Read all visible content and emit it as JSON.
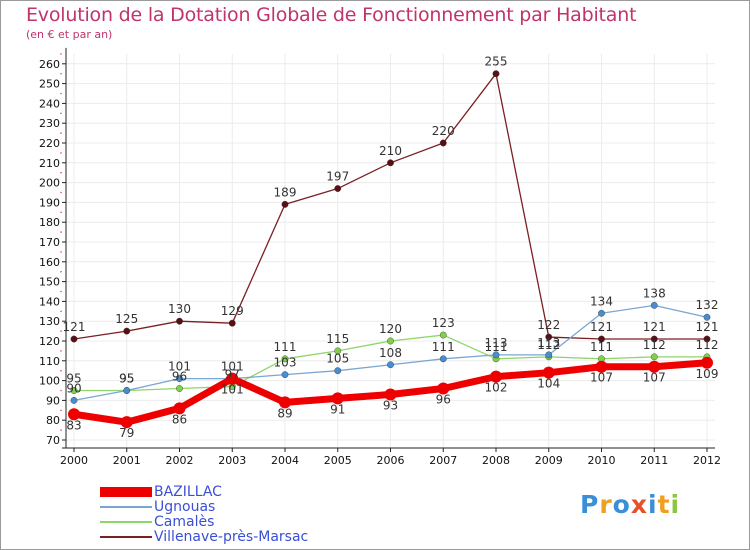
{
  "title": "Evolution de la Dotation Globale de Fonctionnement par Habitant",
  "subtitle": "(en € et par an)",
  "brand": {
    "letters": [
      "P",
      "r",
      "o",
      "x",
      "i",
      "t",
      "i"
    ],
    "colors": [
      "#3a8fd8",
      "#f0a020",
      "#3a8fd8",
      "#e8502a",
      "#3a8fd8",
      "#f0a020",
      "#8cc63e"
    ]
  },
  "colors": {
    "title": "#c0346b",
    "axis": "#222222",
    "grid": "#ececec",
    "tick_label": "#111111",
    "data_label": "#333333",
    "legend_text": "#3a4fd6"
  },
  "chart_data": {
    "type": "line",
    "title": "Evolution de la Dotation Globale de Fonctionnement par Habitant",
    "subtitle": "(en € et par an)",
    "xlabel": "",
    "ylabel": "",
    "ylim": [
      70,
      265
    ],
    "yticks": [
      70,
      80,
      90,
      100,
      110,
      120,
      130,
      140,
      150,
      160,
      170,
      180,
      190,
      200,
      210,
      220,
      230,
      240,
      250,
      260
    ],
    "x": [
      "2000",
      "2001",
      "2002",
      "2003",
      "2004",
      "2005",
      "2006",
      "2007",
      "2008",
      "2009",
      "2010",
      "2011",
      "2012"
    ],
    "grid": true,
    "legend_position": "bottom-left",
    "series": [
      {
        "name": "Villenave-près-Marsac",
        "color": "#7a1f22",
        "marker": "#5a0f14",
        "values": [
          121,
          125,
          130,
          129,
          189,
          197,
          210,
          220,
          255,
          122,
          121,
          121,
          121
        ],
        "labels": [
          "121",
          "125",
          "130",
          "129",
          "189",
          "197",
          "210",
          "220",
          "255",
          "122",
          "121",
          "121",
          "121"
        ]
      },
      {
        "name": "Camalès",
        "color": "#8ed66a",
        "marker": "#7fd14a",
        "values": [
          95,
          95,
          96,
          97,
          111,
          115,
          120,
          123,
          111,
          112,
          111,
          112,
          112
        ],
        "labels": [
          "95",
          "95",
          "96",
          "97",
          "111",
          "115",
          "120",
          "123",
          "111",
          "112",
          "111",
          "112",
          "112"
        ]
      },
      {
        "name": "Ugnouas",
        "color": "#7aa6d2",
        "marker": "#4a8cd0",
        "values": [
          90,
          95,
          101,
          101,
          103,
          105,
          108,
          111,
          113,
          113,
          134,
          138,
          132
        ],
        "labels": [
          "90",
          "95",
          "101",
          "101",
          "103",
          "105",
          "108",
          "111",
          "113",
          "113",
          "134",
          "138",
          "132"
        ]
      },
      {
        "name": "BAZILLAC",
        "color": "#ee0000",
        "marker": "#ee0000",
        "values": [
          83,
          79,
          86,
          101,
          89,
          91,
          93,
          96,
          102,
          104,
          107,
          107,
          109
        ],
        "labels": [
          "83",
          "79",
          "86",
          "101",
          "89",
          "91",
          "93",
          "96",
          "102",
          "104",
          "107",
          "107",
          "109"
        ]
      }
    ],
    "legend": [
      "BAZILLAC",
      "Ugnouas",
      "Camalès",
      "Villenave-près-Marsac"
    ]
  }
}
